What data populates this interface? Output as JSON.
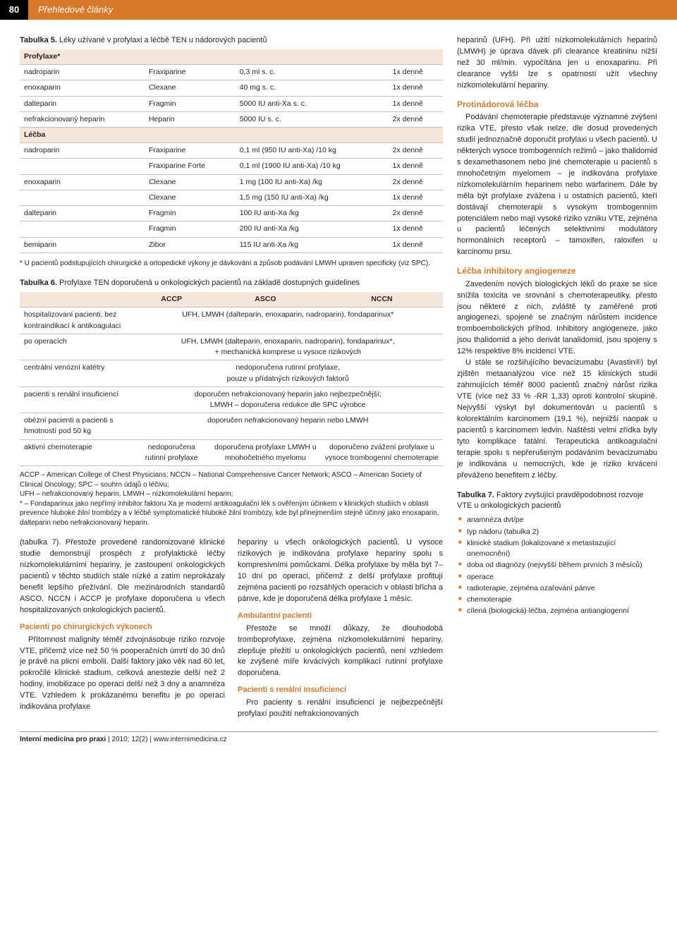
{
  "header": {
    "page": "80",
    "section": "Přehledové články"
  },
  "table5": {
    "title_bold": "Tabulka 5.",
    "title_rest": " Léky užívané v profylaxi a léčbě TEN u nádorových pacientů",
    "section1": "Profylaxe*",
    "rows1": [
      [
        "nadroparin",
        "Fraxiparine",
        "0,3 ml s. c.",
        "1x denně"
      ],
      [
        "enoxaparin",
        "Clexane",
        "40 mg s. c.",
        "1x denně"
      ],
      [
        "dalteparin",
        "Fragmin",
        "5000 IU anti-Xa s. c.",
        "1x denně"
      ],
      [
        "nefrakcionovaný heparin",
        "Heparin",
        "5000 IU s. c.",
        "2x denně"
      ]
    ],
    "section2": "Léčba",
    "rows2": [
      [
        "nadroparin",
        "Fraxiparine",
        "0,1 ml (950 IU anti-Xa) /10 kg",
        "2x denně"
      ],
      [
        "",
        "Fraxiparine Forte",
        "0,1 ml (1900 IU anti-Xa) /10 kg",
        "1x denně"
      ],
      [
        "enoxaparin",
        "Clexane",
        "1 mg (100 IU anti-Xa) /kg",
        "2x denně"
      ],
      [
        "",
        "Clexane",
        "1,5 mg (150 IU anti-Xa) /kg",
        "1x denně"
      ],
      [
        "dalteparin",
        "Fragmin",
        "100 IU anti-Xa /kg",
        "2x denně"
      ],
      [
        "",
        "Fragmin",
        "200 IU anti-Xa /kg",
        "1x denně"
      ],
      [
        "bemiparin",
        "Zibor",
        "115 IU anti-Xa /kg",
        "1x denně"
      ]
    ],
    "foot": "* U pacientů podstupujících chirurgické a ortopedické výkony je dávkování a způsob podávání LMWH upraven specificky (viz SPC)."
  },
  "table6": {
    "title_bold": "Tabulka 6.",
    "title_rest": " Profylaxe TEN doporučená u onkologických pacientů na základě dostupných guidelines",
    "head": [
      "",
      "ACCP",
      "ASCO",
      "NCCN"
    ],
    "rows": [
      {
        "label": "hospitalizovaní pacienti, bez kontraindikací k antikoagulaci",
        "merged": "UFH, LMWH (dalteparin, enoxaparin, nadroparin), fondaparinux*"
      },
      {
        "label": "po operacích",
        "merged": "UFH, LMWH (dalteparin, enoxaparin, nadroparin), fondaparinux*,\n+ mechanická komprese u vysoce rizikových"
      },
      {
        "label": "centrální venózní katétry",
        "merged": "nedoporučena rutinní profylaxe,\npouze u přídatných rizikových faktorů"
      },
      {
        "label": "pacienti s renální insuficiencí",
        "merged": "doporučen nefrakcionovaný heparin jako nejbezpečnější;\nLMWH – doporučena redukce dle SPC výrobce"
      },
      {
        "label": "obézní pacienti a pacienti s hmotností pod 50 kg",
        "merged": "doporučen nefrakcionovaný heparin nebo LMWH"
      },
      {
        "label": "aktivní chemoterapie",
        "cells": [
          "nedoporučena rutinní profylaxe",
          "doporučena profylaxe LMWH u mnohočetného myelomu",
          "doporučeno zvážení profylaxe u vysoce trombogenní chemoterapie"
        ]
      }
    ],
    "foot": "ACCP – American College of Chest Physicians; NCCN – National Comprehensive Cancer Network; ASCO – American Society of Clinical Oncology; SPC – souhrn údajů o léčivu;\nUFH – nefrakcionovaný heparin, LMWH – nízkomolekulární heparin;\n* – Fondaparinux jako nepřímý inhibitor faktoru Xa je moderní antikoagulační lék s ověřeným účinkem v klinických studiích v oblasti prevence hluboké žilní trombózy a v léčbě symptomatické hluboké žilní trombózy, kde byl přinejmenším stejně účinný jako enoxaparin, dalteparin nebo nefrakcionovaný heparin."
  },
  "leftText": {
    "p1": "(tabulka 7). Přestože provedené randomizované klinické studie demonstrují prospěch z profylaktické léčby nízkomolekulárními hepariny, je zastoupení onkologických pacientů v těchto studiích stále nízké a zatím neprokázaly benefit lepšího přežívání. Dle mezinárodních standardů ASCO, NCCN i ACCP je profylaxe doporučena u všech hospitalizovaných onkologických pacientů.",
    "h1": "Pacienti po chirurgických výkonech",
    "p2": "Přítomnost malignity téměř zdvojnásobuje riziko rozvoje VTE, přičemž více než 50 % pooperačních úmrtí do 30 dnů je právě na plicní embolii. Další faktory jako věk nad 60 let, pokročilé klinické stadium, celková anestezie delší než 2 hodiny, imobilizace po operaci delší než 3 dny a anamnéza VTE. Vzhledem k prokázanému benefitu je po operaci indikována profylaxe",
    "p3": "hepariny u všech onkologických pacientů. U vysoce rizikových je indikována profylaxe hepariny spolu s kompresivními pomůckami. Délka profylaxe by měla být 7–10 dní po operaci, přičemž z delší profylaxe profitují zejména pacienti po rozsáhlých operacích v oblasti břicha a pánve, kde je doporučená délka profylaxe 1 měsíc.",
    "h2": "Ambulantní pacienti",
    "p4": "Přestože se množí důkazy, že dlouhodobá tromboprofylaxe, zejména nízkomolekulárními hepariny, zlepšuje přežití u onkologických pacientů, není vzhledem ke zvýšené míře krvácivých komplikací rutinní profylaxe doporučena.",
    "h3": "Pacienti s renální insuficiencí",
    "p5": "Pro pacienty s renální insuficiencí je nejbezpečnější profylaxí použití nefrakcionovaných"
  },
  "rightText": {
    "p1": "heparinů (UFH). Při užití nízkomolekulárních heparinů (LMWH) je úprava dávek při clearance kreatininu nižší než 30 ml/min. vypočítána jen u enoxaparinu. Při clearance vyšší lze s opatrností užít všechny nízkomolekulární hepariny.",
    "h1": "Protinádorová léčba",
    "p2": "Podávání chemoterapie představuje významné zvýšení rizika VTE, přesto však nelze, dle dosud provedených studií jednoznačně doporučit profylaxi u všech pacientů. U některých vysoce trombogenních režimů – jako thalidomid s dexamethasonem nebo jiné chemoterapie u pacientů s mnohočetným myelomem – je indikována profylaxe nízkomolekulárním heparinem nebo warfarinem. Dále by měla být profylaxe zvážena i u ostatních pacientů, kteří dostávají chemoterapii s vysokým trombogenním potenciálem nebo mají vysoké riziko vzniku VTE, zejména u pacientů léčených selektivními modulátory hormonálních receptorů – tamoxifen, raloxifen u karcinomu prsu.",
    "h2": "Léčba inhibitory angiogeneze",
    "p3": "Zavedením nových biologických léků do praxe se sice snížila toxicita ve srovnání s chemoterapeutiky, přesto jsou některé z nich, zvláště ty zaměřené proti angiogenezi, spojené se značným nárůstem incidence tromboembolických příhod. Inhibitory angiogeneze, jako jsou thalidomid a jeho derivát lanalidomid, jsou spojeny s 12% respektive 8% incidencí VTE.",
    "p4": "U stále se rozšiřujícího bevacizumabu (Avastin®) byl zjištěn metaanalýzou více než 15 klinických studií zahrnujících téměř 8000 pacientů značný nárůst rizika VTE (více než 33 % -RR 1,33) oproti kontrolní skupině. Nejvyšší výskyt byl dokumentován u pacientů s kolorektálním karcinomem (19,1 %), nejnižší naopak u pacientů s karcinomem ledvin. Naštěstí velmi zřídka byly tyto komplikace fatální. Terapeutická antikoagulační terapie spolu s nepřerušeným podáváním bevacizumabu je indikována u nemocných, kde je riziko krvácení převáženo benefitem z léčby."
  },
  "table7": {
    "title_bold": "Tabulka 7.",
    "title_rest": " Faktory zvyšující pravděpodobnost rozvoje VTE u onkologických pacientů",
    "items": [
      "anamnéza dvt/pe",
      "typ nádoru (tabulka 2)",
      "klinické stadium (lokalizované x metastazující onemocnění)",
      "doba od diagnózy (nejvyšší během prvních 3 měsíců)",
      "operace",
      "radioterapie, zejména ozařování pánve",
      "chemoterapie",
      "cílená (biologická) léčba, zejména antiangiogenní"
    ]
  },
  "footer": {
    "bold": "Interní medicína pro praxi",
    "rest": " | 2010; 12(2) | www.internimedicina.cz"
  }
}
